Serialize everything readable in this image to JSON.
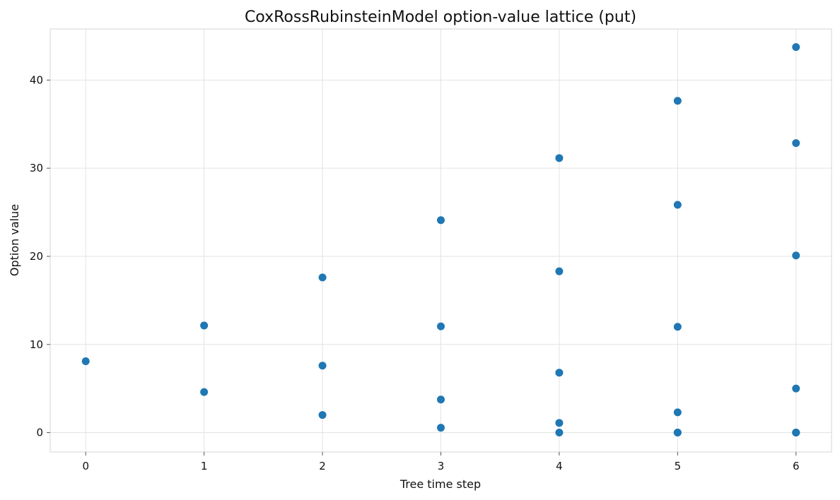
{
  "chart_data": {
    "type": "scatter",
    "title": "CoxRossRubinsteinModel option-value lattice (put)",
    "xlabel": "Tree time step",
    "ylabel": "Option value",
    "xlim": [
      -0.3,
      6.3
    ],
    "ylim": [
      -2.2,
      45.8
    ],
    "x_ticks": [
      0,
      1,
      2,
      3,
      4,
      5,
      6
    ],
    "y_ticks": [
      0,
      10,
      20,
      30,
      40
    ],
    "grid": true,
    "marker_color": "#1f77b4",
    "series": [
      {
        "points": [
          {
            "x": 0,
            "y": 8.1
          },
          {
            "x": 1,
            "y": 12.15
          },
          {
            "x": 1,
            "y": 4.6
          },
          {
            "x": 2,
            "y": 17.6
          },
          {
            "x": 2,
            "y": 7.6
          },
          {
            "x": 2,
            "y": 2.0
          },
          {
            "x": 3,
            "y": 24.1
          },
          {
            "x": 3,
            "y": 12.05
          },
          {
            "x": 3,
            "y": 3.75
          },
          {
            "x": 3,
            "y": 0.55
          },
          {
            "x": 4,
            "y": 31.15
          },
          {
            "x": 4,
            "y": 18.3
          },
          {
            "x": 4,
            "y": 6.8
          },
          {
            "x": 4,
            "y": 1.1
          },
          {
            "x": 4,
            "y": 0.0
          },
          {
            "x": 5,
            "y": 37.65
          },
          {
            "x": 5,
            "y": 25.85
          },
          {
            "x": 5,
            "y": 12.0
          },
          {
            "x": 5,
            "y": 2.3
          },
          {
            "x": 5,
            "y": 0.0
          },
          {
            "x": 5,
            "y": 0.0
          },
          {
            "x": 6,
            "y": 43.75
          },
          {
            "x": 6,
            "y": 32.85
          },
          {
            "x": 6,
            "y": 20.1
          },
          {
            "x": 6,
            "y": 5.0
          },
          {
            "x": 6,
            "y": 0.0
          },
          {
            "x": 6,
            "y": 0.0
          },
          {
            "x": 6,
            "y": 0.0
          }
        ]
      }
    ]
  }
}
